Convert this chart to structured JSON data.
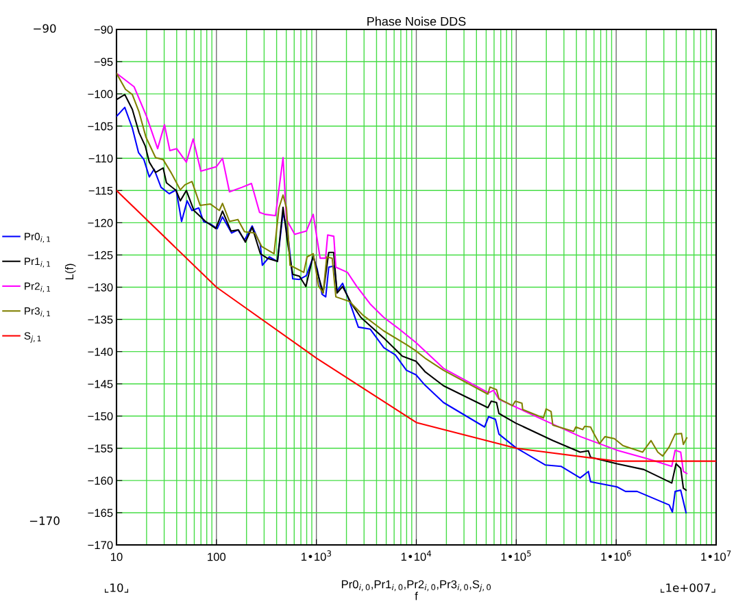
{
  "chart_data": {
    "type": "line",
    "title": "Phase Noise DDS",
    "xlabel": "Pr0$_{i,0}$,Pr1$_{i,0}$,Pr2$_{i,0}$,Pr3$_{i,0}$,S$_{j,0}$\nf",
    "ylabel": "L(f)",
    "log": "x",
    "grid": true,
    "legend": "left",
    "line_style": "solid",
    "marker": "none",
    "xlim": [
      10,
      10000000
    ],
    "xticks": [
      10,
      100,
      {
        "value": 1000,
        "label": "1•10$^{3}$"
      },
      {
        "value": 10000,
        "label": "1•10$^{4}$"
      },
      {
        "value": 100000,
        "label": "1•10$^{5}$"
      },
      {
        "value": 1000000,
        "label": "1•10$^{6}$"
      },
      {
        "value": 10000000,
        "label": "1•10$^{7}$"
      }
    ],
    "ylim": [
      -170,
      -90
    ],
    "yticks": [
      {
        "value": -170,
        "label": "−170"
      },
      {
        "value": -165,
        "label": "−165"
      },
      {
        "value": -160,
        "label": "−160"
      },
      {
        "value": -155,
        "label": "−155"
      },
      {
        "value": -150,
        "label": "−150"
      },
      {
        "value": -145,
        "label": "−145"
      },
      {
        "value": -140,
        "label": "−140"
      },
      {
        "value": -135,
        "label": "−135"
      },
      {
        "value": -130,
        "label": "−130"
      },
      {
        "value": -125,
        "label": "−125"
      },
      {
        "value": -120,
        "label": "−120"
      },
      {
        "value": -115,
        "label": "−115"
      },
      {
        "value": -110,
        "label": "−110"
      },
      {
        "value": -105,
        "label": "−105"
      },
      {
        "value": -100,
        "label": "−100"
      },
      {
        "value": -95,
        "label": "−95"
      },
      {
        "value": -90,
        "label": "−90"
      }
    ],
    "annotations": [
      "−90",
      "−170",
      "⌞10⌟",
      "⌞1e+007⌟"
    ],
    "series": [
      {
        "name": "Pr0$_{i,1}$",
        "color": "#0000ff",
        "x": [
          10,
          12.1,
          14.4,
          16.6,
          18.8,
          21.3,
          23.8,
          27.9,
          33.7,
          39.5,
          44.8,
          50.9,
          56.9,
          66.6,
          74.3,
          87.1,
          102,
          115,
          142,
          164,
          191,
          228,
          275,
          288,
          338,
          408,
          464,
          519,
          580,
          677,
          794,
          930,
          1020,
          1140,
          1240,
          1330,
          1510,
          1610,
          1830,
          2140,
          2630,
          3450,
          4730,
          6160,
          7960,
          9930,
          12200,
          18700,
          48200,
          52900,
          61900,
          67100,
          98900,
          196000,
          280000,
          436000,
          527000,
          554000,
          1020000,
          1240000,
          1620000,
          3390000,
          3650000,
          3890000,
          4420000,
          5000000
        ],
        "values": [
          -103.5,
          -102.1,
          -105.3,
          -109.1,
          -110.2,
          -112.9,
          -111.7,
          -114.5,
          -115.5,
          -114.9,
          -119.8,
          -116.6,
          -118.1,
          -117.7,
          -119.8,
          -120.2,
          -120.9,
          -119.1,
          -121.6,
          -121.1,
          -122.7,
          -120.5,
          -123.4,
          -126.6,
          -125.3,
          -126,
          -118.4,
          -121.9,
          -128.7,
          -128.8,
          -128.2,
          -125.3,
          -127.2,
          -131.1,
          -131.5,
          -126.9,
          -126.7,
          -130.6,
          -129.4,
          -132.2,
          -136.2,
          -136.5,
          -139.4,
          -140.5,
          -142.9,
          -143.6,
          -145.2,
          -147.9,
          -151.7,
          -150.1,
          -150.5,
          -152.8,
          -154.9,
          -157.6,
          -157.8,
          -159.6,
          -158.6,
          -160.2,
          -161,
          -161.7,
          -161.7,
          -163.8,
          -164.9,
          -161.7,
          -161.5,
          -165
        ]
      },
      {
        "name": "Pr1$_{i,1}$",
        "color": "#000000",
        "x": [
          10,
          12.1,
          14.4,
          16.8,
          19.4,
          21.3,
          24.6,
          29.3,
          31.6,
          39.5,
          43.5,
          50,
          59.5,
          77.9,
          98.8,
          115,
          140,
          166,
          195,
          228,
          275,
          322,
          408,
          464,
          519,
          580,
          677,
          785,
          930,
          1050,
          1170,
          1330,
          1490,
          1610,
          1830,
          2250,
          2790,
          4730,
          7240,
          9930,
          12200,
          18700,
          52000,
          56200,
          63500,
          67100,
          98900,
          232000,
          436000,
          527000,
          554000,
          1020000,
          1890000,
          3600000,
          3970000,
          4420000,
          4700000,
          5000000
        ],
        "values": [
          -100.9,
          -100.1,
          -102.4,
          -106,
          -108.1,
          -110.6,
          -112.2,
          -111.5,
          -113.8,
          -115,
          -116.6,
          -115,
          -118.1,
          -119.8,
          -120.9,
          -118.2,
          -121.3,
          -121.1,
          -123,
          -120.7,
          -124.8,
          -125.5,
          -126,
          -117.6,
          -123.4,
          -128,
          -128.3,
          -129.9,
          -125.1,
          -128.3,
          -130.9,
          -124.6,
          -124.6,
          -130.9,
          -129.9,
          -132.6,
          -134.7,
          -137.9,
          -140.7,
          -141.5,
          -143.1,
          -145.3,
          -148.7,
          -147.7,
          -147.9,
          -149.6,
          -151.1,
          -153.8,
          -155.6,
          -155.4,
          -156.4,
          -157.4,
          -158.3,
          -160.4,
          -157.4,
          -158.1,
          -161.2,
          -161.5
        ]
      },
      {
        "name": "Pr2$_{i,1}$",
        "color": "#ff00ff",
        "x": [
          10,
          15,
          20,
          25.8,
          30.2,
          34.2,
          40,
          50,
          58.5,
          69.8,
          100,
          115,
          135,
          180,
          224,
          270,
          307,
          390,
          464,
          502,
          607,
          794,
          930,
          1090,
          1236,
          1297,
          1494,
          1567,
          2047,
          2515,
          3450,
          4730,
          6490,
          9930,
          18700,
          52900,
          59200,
          67100,
          187000,
          440000,
          1020000,
          2130000,
          3600000,
          3890000,
          4420000,
          4700000,
          5080000
        ],
        "values": [
          -96.8,
          -98.9,
          -103.5,
          -108.5,
          -104.8,
          -108.8,
          -108.5,
          -110.6,
          -107,
          -112,
          -111.3,
          -110,
          -115.2,
          -114.5,
          -113.9,
          -118.4,
          -118.7,
          -118.9,
          -109.9,
          -119.5,
          -121.8,
          -121.3,
          -118.7,
          -125.5,
          -125.5,
          -121.9,
          -122.1,
          -126.9,
          -127.7,
          -129.8,
          -132.6,
          -134.7,
          -136.3,
          -138.6,
          -142.6,
          -146.4,
          -146,
          -147.4,
          -150.6,
          -153.2,
          -155.3,
          -156.7,
          -157.8,
          -155.3,
          -155.6,
          -158.6,
          -158.9
        ]
      },
      {
        "name": "Pr3$_{i,1}$",
        "color": "#808000",
        "x": [
          10,
          12.3,
          14.4,
          16.8,
          19.7,
          24.6,
          29.3,
          35.4,
          43.5,
          48.5,
          56.9,
          68.7,
          87.1,
          107,
          115,
          135,
          164,
          191,
          243,
          284,
          377,
          422,
          464,
          502,
          545,
          748,
          807,
          930,
          1050,
          1170,
          1270,
          1440,
          1567,
          2140,
          2950,
          4730,
          7960,
          9930,
          12200,
          18700,
          52000,
          54600,
          63500,
          67100,
          91600,
          97700,
          114000,
          116000,
          187000,
          199000,
          223000,
          232000,
          375000,
          394000,
          463000,
          484000,
          554000,
          601000,
          681000,
          772000,
          958000,
          1170000,
          1840000,
          2230000,
          2610000,
          2920000,
          3390000,
          3890000,
          4500000,
          4700000,
          5080000
        ],
        "values": [
          -96.8,
          -99.3,
          -100.1,
          -102.8,
          -106.7,
          -109.9,
          -110.2,
          -112.3,
          -114.9,
          -114.1,
          -113.6,
          -117.3,
          -117.1,
          -118.1,
          -117,
          -119.8,
          -119.5,
          -121.4,
          -121.6,
          -123.7,
          -124.8,
          -117.7,
          -115.7,
          -117.7,
          -126.6,
          -127.7,
          -125.3,
          -124.8,
          -129.8,
          -130.9,
          -125.3,
          -125.5,
          -131.5,
          -132.2,
          -134.4,
          -136.8,
          -138.9,
          -139.9,
          -141,
          -142.9,
          -146.6,
          -145.5,
          -145.9,
          -147.3,
          -148.4,
          -147.7,
          -148,
          -149,
          -150.3,
          -148.9,
          -149.3,
          -151.4,
          -152.4,
          -151.7,
          -152.1,
          -151.6,
          -151.7,
          -152.8,
          -154.3,
          -153.2,
          -153.5,
          -154.6,
          -155.6,
          -153.8,
          -155.6,
          -156.2,
          -154.8,
          -152.8,
          -152.7,
          -154.4,
          -153.4
        ]
      },
      {
        "name": "S$_{j,1}$",
        "color": "#ff0000",
        "x": [
          10,
          100,
          1000,
          10000,
          100000,
          1000000,
          10000000
        ],
        "values": [
          -115,
          -130,
          -141,
          -151,
          -155,
          -157,
          -157
        ]
      }
    ]
  }
}
